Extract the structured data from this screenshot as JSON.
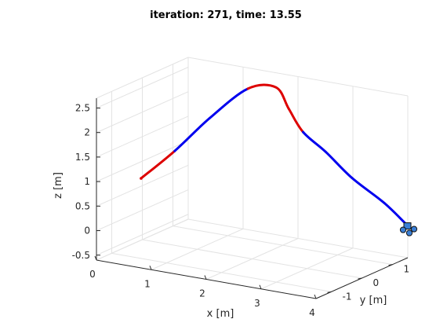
{
  "chart_data": {
    "type": "line3d",
    "title": "iteration: 271, time: 13.55",
    "xlabel": "x [m]",
    "ylabel": "y [m]",
    "zlabel": "z [m]",
    "grid": true,
    "xlim": [
      0,
      4
    ],
    "ylim": [
      -1.5,
      1.5
    ],
    "zlim": [
      -0.6,
      2.7
    ],
    "x_ticks": [
      "0",
      "1",
      "2",
      "3",
      "4"
    ],
    "y_ticks": [
      "-1",
      "0",
      "1"
    ],
    "z_ticks": [
      "-0.5",
      "0",
      "0.5",
      "1",
      "1.5",
      "2",
      "2.5"
    ],
    "series": [
      {
        "color_primary": "#0000ee",
        "color_highlight": "#dd0000",
        "points": [
          [
            0.2,
            -0.4,
            0.8
          ],
          [
            0.7,
            -0.2,
            1.4
          ],
          [
            1.2,
            0.05,
            2.1
          ],
          [
            1.7,
            0.4,
            2.7
          ],
          [
            2.1,
            0.6,
            2.75
          ],
          [
            2.25,
            0.75,
            2.3
          ],
          [
            2.4,
            0.95,
            1.8
          ],
          [
            2.7,
            1.15,
            1.4
          ],
          [
            3.1,
            1.3,
            0.9
          ],
          [
            3.6,
            1.45,
            0.45
          ],
          [
            4.0,
            1.5,
            0.05
          ]
        ],
        "highlight_ranges": [
          [
            0,
            1
          ],
          [
            3,
            6
          ]
        ]
      }
    ],
    "robot_marker": {
      "x": 4.0,
      "y": 1.5,
      "z": 0.0,
      "color": "#3a7fd6"
    }
  }
}
